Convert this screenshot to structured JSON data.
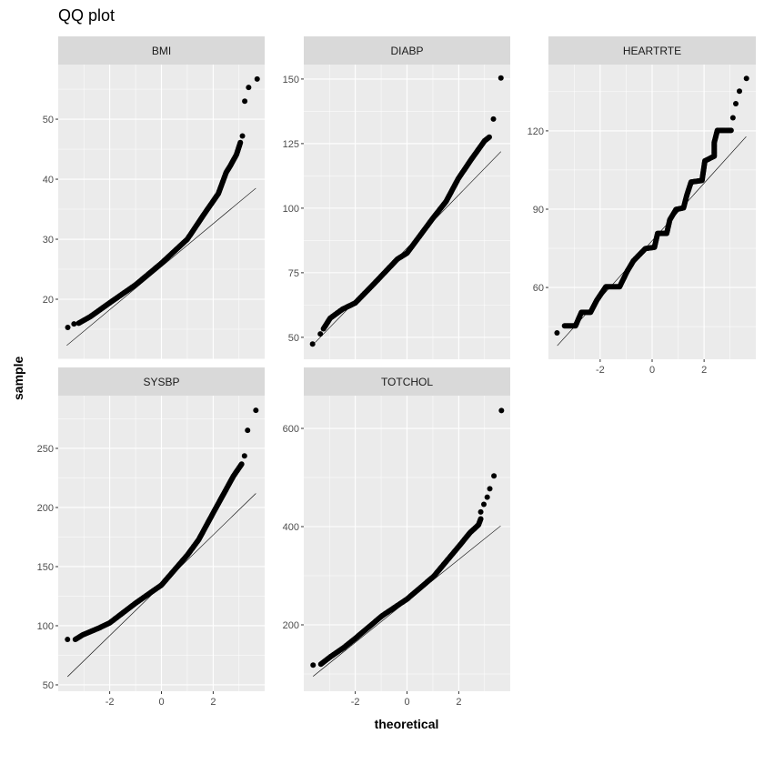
{
  "chart_data": {
    "type": "scatter",
    "title": "QQ plot",
    "xlabel": "theoretical",
    "ylabel": "sample",
    "grid": true,
    "xlim": [
      -3.99,
      3.99
    ],
    "x_ticks": [
      -2,
      0,
      2
    ],
    "colors": {
      "panel_bg": "#ebebeb",
      "strip_bg": "#d9d9d9",
      "grid": "#ffffff",
      "points": "#000000",
      "line": "#000000",
      "tick_label": "#4d4d4d"
    },
    "facets": [
      {
        "name": "BMI",
        "ylim": [
          10,
          59.1
        ],
        "y_ticks": [
          20,
          30,
          40,
          50
        ],
        "line": [
          [
            -3.66,
            12.3
          ],
          [
            3.65,
            38.5
          ]
        ],
        "quantile_curve": [
          [
            -3.2,
            16.0
          ],
          [
            -2.75,
            17.1
          ],
          [
            -2.0,
            19.4
          ],
          [
            -1.0,
            22.4
          ],
          [
            0,
            26.0
          ],
          [
            1.0,
            30.0
          ],
          [
            1.7,
            34.5
          ],
          [
            2.2,
            37.6
          ],
          [
            2.5,
            41.1
          ],
          [
            2.67,
            42.3
          ],
          [
            2.9,
            44.1
          ],
          [
            3.05,
            46.1
          ]
        ],
        "isolated_points": [
          [
            -3.62,
            15.3
          ],
          [
            -3.38,
            15.9
          ],
          [
            3.13,
            47.2
          ],
          [
            3.22,
            53.0
          ],
          [
            3.37,
            55.3
          ],
          [
            3.7,
            56.7
          ]
        ]
      },
      {
        "name": "DIABP",
        "ylim": [
          41.5,
          155.6
        ],
        "y_ticks": [
          50,
          75,
          100,
          125,
          150
        ],
        "line": [
          [
            -3.55,
            48.0
          ],
          [
            3.63,
            121.9
          ]
        ],
        "quantile_curve": [
          [
            -3.23,
            53.3
          ],
          [
            -2.97,
            57.4
          ],
          [
            -2.49,
            60.9
          ],
          [
            -2.0,
            63.3
          ],
          [
            -1.26,
            70.9
          ],
          [
            -0.37,
            80.3
          ],
          [
            0,
            82.6
          ],
          [
            1.0,
            96.1
          ],
          [
            1.51,
            102.6
          ],
          [
            1.98,
            111.4
          ],
          [
            2.45,
            118.4
          ],
          [
            3.0,
            126.1
          ],
          [
            3.18,
            127.5
          ]
        ],
        "isolated_points": [
          [
            -3.65,
            47.4
          ],
          [
            -3.35,
            51.3
          ],
          [
            3.34,
            134.5
          ],
          [
            3.63,
            150.4
          ]
        ]
      },
      {
        "name": "HEARTRTE",
        "ylim": [
          32.5,
          145.4
        ],
        "y_ticks": [
          60,
          90,
          120
        ],
        "line": [
          [
            -3.65,
            37.7
          ],
          [
            3.62,
            117.8
          ]
        ],
        "quantile_curve": [
          [
            -3.37,
            45.3
          ],
          [
            -2.95,
            45.3
          ],
          [
            -2.72,
            50.5
          ],
          [
            -2.37,
            50.5
          ],
          [
            -2.13,
            55.1
          ],
          [
            -1.78,
            60.3
          ],
          [
            -1.25,
            60.3
          ],
          [
            -0.96,
            66.2
          ],
          [
            -0.72,
            70.2
          ],
          [
            -0.26,
            74.9
          ],
          [
            0.09,
            75.4
          ],
          [
            0.21,
            80.7
          ],
          [
            0.56,
            80.7
          ],
          [
            0.68,
            85.9
          ],
          [
            0.92,
            89.9
          ],
          [
            1.21,
            90.5
          ],
          [
            1.33,
            95.2
          ],
          [
            1.5,
            100.4
          ],
          [
            1.92,
            101.0
          ],
          [
            2.03,
            108.5
          ],
          [
            2.39,
            110.3
          ],
          [
            2.39,
            115.5
          ],
          [
            2.51,
            120.2
          ],
          [
            3.04,
            120.2
          ]
        ],
        "isolated_points": [
          [
            -3.66,
            42.6
          ],
          [
            3.11,
            125.0
          ],
          [
            3.22,
            130.4
          ],
          [
            3.36,
            135.2
          ],
          [
            3.63,
            140.1
          ]
        ]
      },
      {
        "name": "SYSBP",
        "ylim": [
          44.6,
          294.6
        ],
        "y_ticks": [
          50,
          100,
          150,
          200,
          250
        ],
        "line": [
          [
            -3.63,
            56.9
          ],
          [
            3.65,
            211.9
          ]
        ],
        "quantile_curve": [
          [
            -3.33,
            88.4
          ],
          [
            -3.05,
            92.2
          ],
          [
            -2.41,
            98.1
          ],
          [
            -2.0,
            102.4
          ],
          [
            -1.0,
            119.1
          ],
          [
            0,
            134.4
          ],
          [
            1.01,
            160.0
          ],
          [
            1.44,
            172.8
          ],
          [
            2.01,
            195.8
          ],
          [
            2.46,
            213.7
          ],
          [
            2.78,
            226.5
          ],
          [
            3.1,
            236.7
          ]
        ],
        "isolated_points": [
          [
            -3.63,
            88.4
          ],
          [
            3.21,
            243.6
          ],
          [
            3.33,
            265.3
          ],
          [
            3.65,
            282.2
          ]
        ]
      },
      {
        "name": "TOTCHOL",
        "ylim": [
          64.8,
          666.7
        ],
        "y_ticks": [
          200,
          400,
          600
        ],
        "line": [
          [
            -3.63,
            95.2
          ],
          [
            3.62,
            401.5
          ]
        ],
        "quantile_curve": [
          [
            -3.33,
            120
          ],
          [
            -2.95,
            135.3
          ],
          [
            -2.44,
            153.8
          ],
          [
            -2.0,
            172.3
          ],
          [
            -0.96,
            218.5
          ],
          [
            0,
            252.4
          ],
          [
            1.03,
            298.6
          ],
          [
            2.01,
            360.2
          ],
          [
            2.44,
            388
          ],
          [
            2.76,
            403.4
          ],
          [
            2.85,
            415.7
          ]
        ],
        "isolated_points": [
          [
            -3.63,
            118
          ],
          [
            2.85,
            429.9
          ],
          [
            2.97,
            445.3
          ],
          [
            3.1,
            460
          ],
          [
            3.2,
            477
          ],
          [
            3.36,
            503.2
          ],
          [
            3.65,
            636.3
          ]
        ]
      }
    ]
  }
}
